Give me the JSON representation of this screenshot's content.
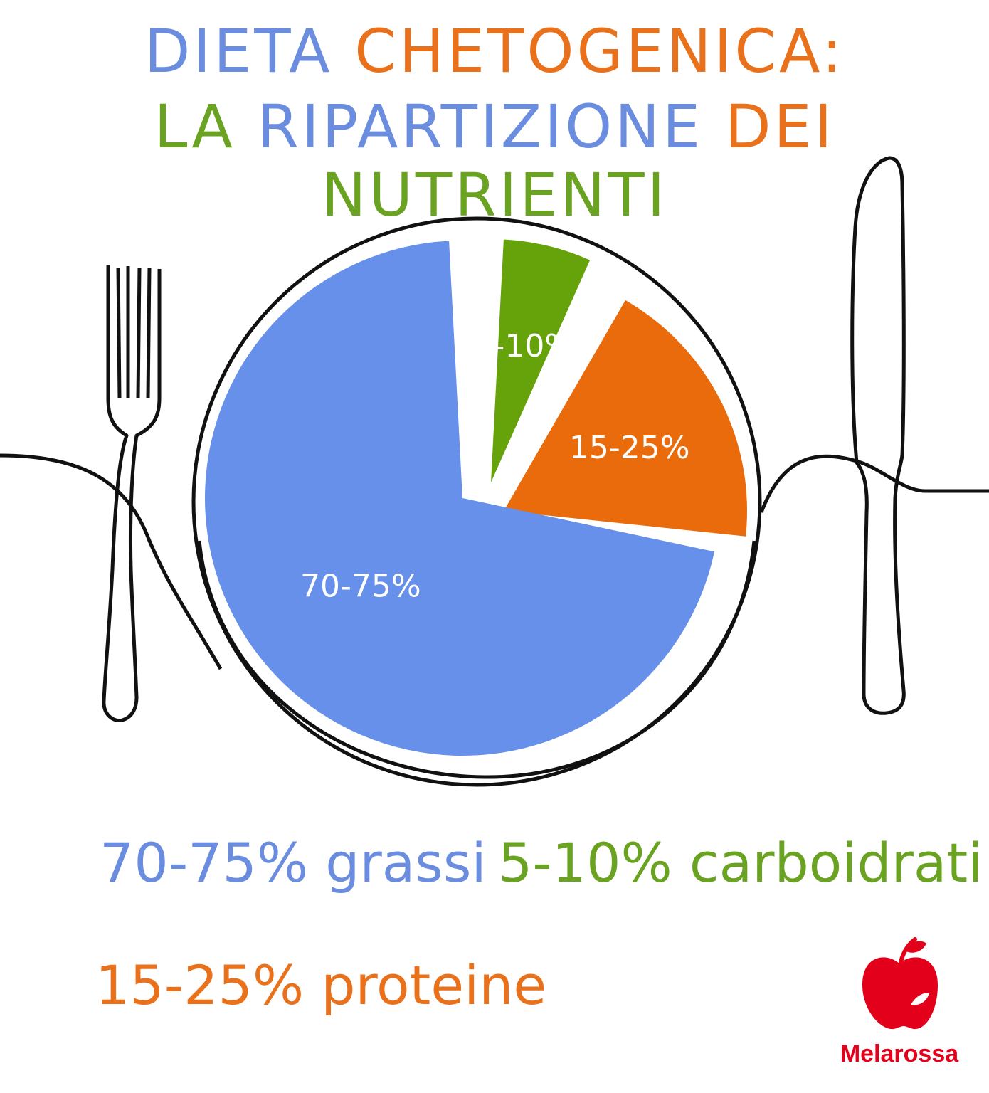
{
  "title": {
    "line1": [
      {
        "text": "DIETA ",
        "color": "#6b8de0"
      },
      {
        "text": "CHETOGENICA:",
        "color": "#e9711c"
      }
    ],
    "line2": [
      {
        "text": "LA ",
        "color": "#6aa321"
      },
      {
        "text": "RIPARTIZIONE ",
        "color": "#6b8de0"
      },
      {
        "text": "DEI ",
        "color": "#e9711c"
      },
      {
        "text": "NUTRIENTI",
        "color": "#6aa321"
      }
    ]
  },
  "chart_data": {
    "type": "pie",
    "slices": [
      {
        "label": "70-75%",
        "name": "grassi",
        "value": 72.5,
        "color": "#6690ea"
      },
      {
        "label": "5-10%",
        "name": "carboidrati",
        "value": 7.5,
        "color": "#66a30b"
      },
      {
        "label": "15-25%",
        "name": "proteine",
        "value": 20,
        "color": "#e96b0b"
      }
    ]
  },
  "legend": [
    {
      "pct": "70-75%",
      "name": "grassi",
      "color": "#6b8de0"
    },
    {
      "pct": "5-10%",
      "name": "carboidrati",
      "color": "#6aa321"
    },
    {
      "pct": "15-25%",
      "name": "proteine",
      "color": "#e9711c"
    }
  ],
  "brand": {
    "name": "Melarossa",
    "color": "#e3001b"
  }
}
